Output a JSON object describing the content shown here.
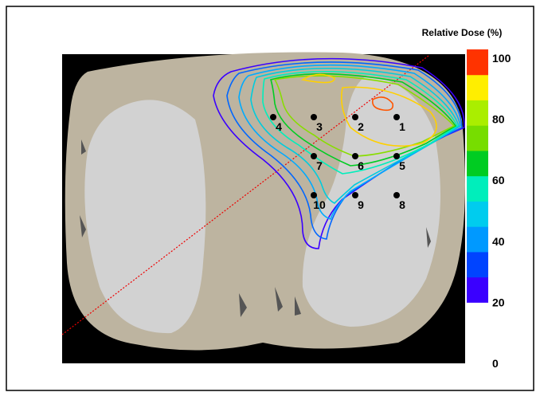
{
  "colorbar": {
    "title": "Relative Dose (%)",
    "ticks": [
      "0",
      "20",
      "40",
      "60",
      "80",
      "100"
    ],
    "colors": [
      "#3a00ff",
      "#0044ff",
      "#0099ff",
      "#00ccee",
      "#00eebb",
      "#00cc22",
      "#77dd00",
      "#aaee00",
      "#ffee00",
      "#ff3300"
    ]
  },
  "points": [
    "1",
    "2",
    "3",
    "4",
    "5",
    "6",
    "7",
    "8",
    "9",
    "10"
  ]
}
